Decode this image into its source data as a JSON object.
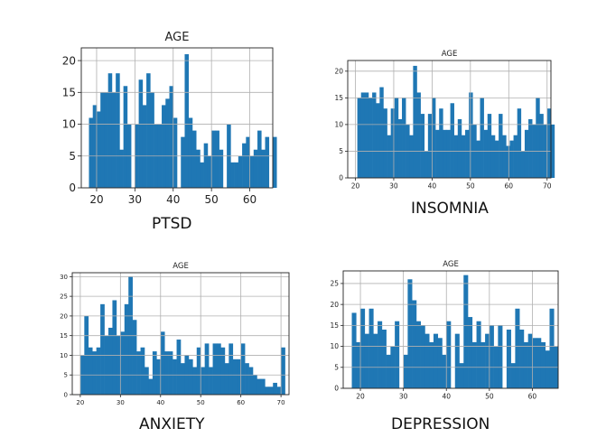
{
  "chart_data": [
    {
      "type": "bar",
      "title": "AGE",
      "caption": "PTSD",
      "xlim": [
        16,
        66
      ],
      "ylim": [
        0,
        22
      ],
      "xticks": [
        20,
        30,
        40,
        50,
        60
      ],
      "yticks": [
        0,
        5,
        10,
        15,
        20
      ],
      "grid": true,
      "bin_start": 18,
      "bin_width": 1,
      "values": [
        11,
        13,
        12,
        15,
        15,
        18,
        15,
        18,
        6,
        16,
        10,
        0,
        10,
        17,
        13,
        18,
        15,
        10,
        10,
        13,
        14,
        16,
        11,
        0,
        8,
        21,
        11,
        9,
        6,
        4,
        7,
        5,
        9,
        9,
        6,
        0,
        10,
        4,
        4,
        5,
        7,
        8,
        5,
        6,
        9,
        6,
        8,
        0,
        8
      ]
    },
    {
      "type": "bar",
      "title": "AGE",
      "caption": "INSOMNIA",
      "xlim": [
        18,
        71
      ],
      "ylim": [
        0,
        22
      ],
      "xticks": [
        20,
        30,
        40,
        50,
        60,
        70
      ],
      "yticks": [
        0,
        5,
        10,
        15,
        20
      ],
      "grid": true,
      "bin_start": 20.5,
      "bin_width": 0.97,
      "values": [
        15,
        16,
        16,
        15,
        16,
        14,
        17,
        13,
        8,
        13,
        15,
        11,
        15,
        10,
        8,
        21,
        16,
        12,
        5,
        12,
        15,
        9,
        13,
        9,
        9,
        14,
        8,
        11,
        8,
        9,
        16,
        10,
        7,
        15,
        9,
        12,
        8,
        7,
        12,
        8,
        6,
        7,
        8,
        13,
        5,
        9,
        11,
        10,
        15,
        12,
        10,
        13,
        10
      ]
    },
    {
      "type": "bar",
      "title": "AGE",
      "caption": "ANXIETY",
      "xlim": [
        18,
        72
      ],
      "ylim": [
        0,
        31
      ],
      "xticks": [
        20,
        30,
        40,
        50,
        60,
        70
      ],
      "yticks": [
        0,
        5,
        10,
        15,
        20,
        25,
        30
      ],
      "grid": true,
      "bin_start": 20,
      "bin_width": 1,
      "values": [
        10,
        20,
        12,
        11,
        12,
        23,
        15,
        17,
        24,
        15,
        16,
        23,
        30,
        19,
        11,
        12,
        7,
        4,
        11,
        9,
        16,
        11,
        11,
        9,
        14,
        8,
        10,
        9,
        7,
        12,
        7,
        13,
        7,
        13,
        13,
        12,
        8,
        13,
        9,
        9,
        13,
        8,
        7,
        5,
        4,
        4,
        2,
        2,
        3,
        2,
        12
      ]
    },
    {
      "type": "bar",
      "title": "AGE",
      "caption": "DEPRESSION",
      "xlim": [
        16,
        66
      ],
      "ylim": [
        0,
        28
      ],
      "xticks": [
        20,
        30,
        40,
        50,
        60
      ],
      "yticks": [
        0,
        5,
        10,
        15,
        20,
        25
      ],
      "grid": true,
      "bin_start": 18,
      "bin_width": 1,
      "values": [
        18,
        11,
        19,
        13,
        19,
        13,
        16,
        14,
        8,
        10,
        16,
        0,
        8,
        26,
        21,
        16,
        15,
        13,
        11,
        13,
        12,
        8,
        16,
        0,
        13,
        6,
        27,
        17,
        11,
        16,
        11,
        13,
        15,
        10,
        15,
        0,
        14,
        6,
        19,
        14,
        11,
        13,
        12,
        12,
        11,
        9,
        19,
        10
      ]
    }
  ]
}
